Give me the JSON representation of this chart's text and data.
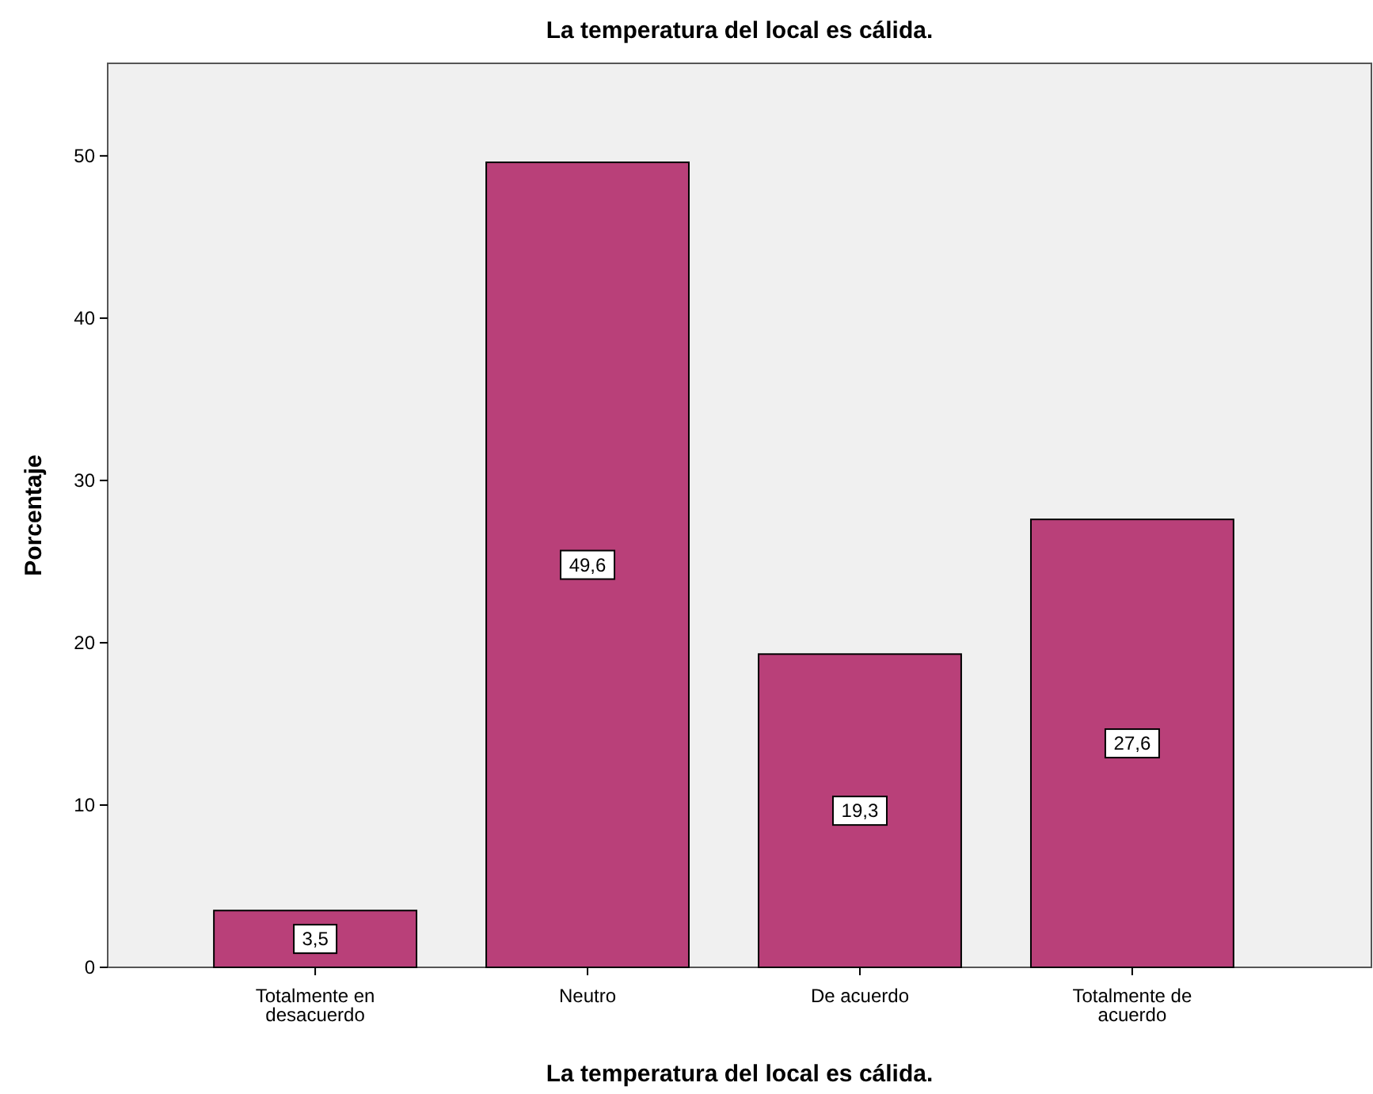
{
  "chart_data": {
    "type": "bar",
    "title": "La temperatura del local es cálida.",
    "xlabel": "La temperatura del local es cálida.",
    "ylabel": "Porcentaje",
    "categories": [
      "Totalmente en desacuerdo",
      "Neutro",
      "De acuerdo",
      "Totalmente de acuerdo"
    ],
    "values": [
      3.5,
      49.6,
      19.3,
      27.6
    ],
    "value_labels": [
      "3,5",
      "49,6",
      "19,3",
      "27,6"
    ],
    "color": "#b94079",
    "ylim": [
      0,
      55.7
    ],
    "yticks": [
      0,
      10,
      20,
      30,
      40,
      50
    ],
    "grid": false
  }
}
